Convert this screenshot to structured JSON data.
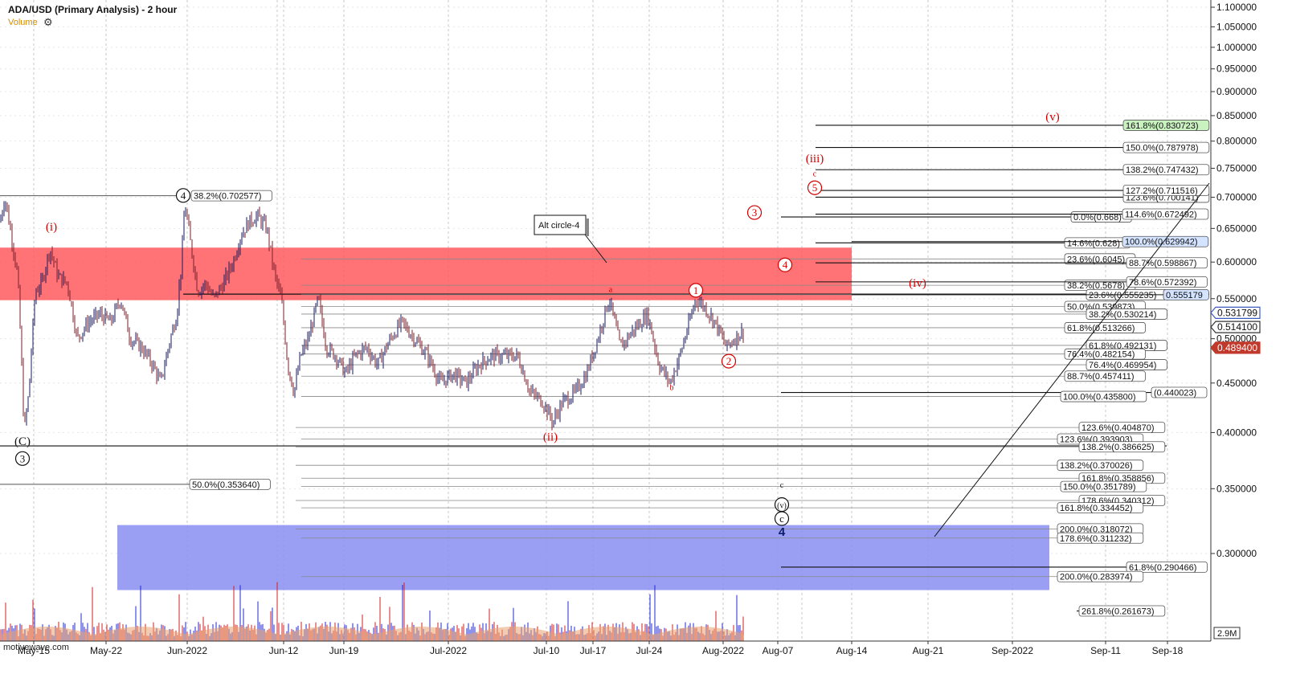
{
  "header": {
    "title": "ADA/USD (Primary Analysis) - 2 hour",
    "volume_label": "Volume",
    "gear_icon": "gear-icon",
    "watermark": "motivewave.com"
  },
  "colors": {
    "red_zone": "#ff5a5f",
    "blue_zone": "#8f95f2",
    "candle": "#1a1a5e",
    "wave_red": "#d40000",
    "fib_line": "#222222",
    "price_badge_blue": "#3b5bbf",
    "price_badge_red": "#c0392b",
    "highlight_green": "#c9f2c0",
    "highlight_blue": "#d4e3ff"
  },
  "chart_data": {
    "type": "candlestick",
    "title": "ADA/USD (Primary Analysis) - 2 hour",
    "ylim": [
      0.26,
      1.1
    ],
    "y_scale": "log",
    "y_ticks": [
      "1.100000",
      "1.050000",
      "1.000000",
      "0.950000",
      "0.900000",
      "0.850000",
      "0.800000",
      "0.750000",
      "0.700000",
      "0.650000",
      "0.600000",
      "0.550000",
      "0.500000",
      "0.450000",
      "0.400000",
      "0.350000",
      "0.300000"
    ],
    "x_ticks": [
      "May-15",
      "May-22",
      "Jun-2022",
      "Jun-12",
      "Jun-19",
      "Jul-2022",
      "Jul-10",
      "Jul-17",
      "Jul-24",
      "Aug-2022",
      "Aug-07",
      "Aug-14",
      "Aug-21",
      "Sep-2022",
      "Sep-11",
      "Sep-18"
    ],
    "current_prices": [
      {
        "value": "0.531799",
        "style": "blue-outline"
      },
      {
        "value": "0.514100",
        "style": "plain"
      },
      {
        "value": "0.489400",
        "style": "red"
      }
    ],
    "volume_scale_label": "2.9M",
    "price_path": [
      [
        0,
        0.66
      ],
      [
        6,
        0.7
      ],
      [
        14,
        0.64
      ],
      [
        22,
        0.58
      ],
      [
        30,
        0.4
      ],
      [
        36,
        0.44
      ],
      [
        44,
        0.56
      ],
      [
        52,
        0.57
      ],
      [
        62,
        0.62
      ],
      [
        72,
        0.58
      ],
      [
        84,
        0.57
      ],
      [
        96,
        0.5
      ],
      [
        110,
        0.52
      ],
      [
        124,
        0.53
      ],
      [
        138,
        0.52
      ],
      [
        150,
        0.55
      ],
      [
        162,
        0.5
      ],
      [
        176,
        0.49
      ],
      [
        190,
        0.47
      ],
      [
        200,
        0.45
      ],
      [
        212,
        0.5
      ],
      [
        220,
        0.53
      ],
      [
        226,
        0.6
      ],
      [
        230,
        0.69
      ],
      [
        238,
        0.62
      ],
      [
        246,
        0.56
      ],
      [
        256,
        0.57
      ],
      [
        266,
        0.55
      ],
      [
        278,
        0.57
      ],
      [
        290,
        0.6
      ],
      [
        300,
        0.64
      ],
      [
        310,
        0.66
      ],
      [
        320,
        0.67
      ],
      [
        332,
        0.65
      ],
      [
        342,
        0.58
      ],
      [
        350,
        0.55
      ],
      [
        358,
        0.47
      ],
      [
        366,
        0.44
      ],
      [
        374,
        0.48
      ],
      [
        384,
        0.5
      ],
      [
        396,
        0.55
      ],
      [
        406,
        0.49
      ],
      [
        418,
        0.48
      ],
      [
        430,
        0.46
      ],
      [
        442,
        0.48
      ],
      [
        456,
        0.49
      ],
      [
        470,
        0.47
      ],
      [
        486,
        0.5
      ],
      [
        500,
        0.52
      ],
      [
        516,
        0.5
      ],
      [
        532,
        0.48
      ],
      [
        548,
        0.45
      ],
      [
        564,
        0.46
      ],
      [
        580,
        0.45
      ],
      [
        596,
        0.47
      ],
      [
        612,
        0.48
      ],
      [
        628,
        0.48
      ],
      [
        644,
        0.48
      ],
      [
        660,
        0.44
      ],
      [
        676,
        0.43
      ],
      [
        688,
        0.41
      ],
      [
        700,
        0.43
      ],
      [
        716,
        0.44
      ],
      [
        730,
        0.46
      ],
      [
        744,
        0.5
      ],
      [
        758,
        0.55
      ],
      [
        772,
        0.49
      ],
      [
        788,
        0.51
      ],
      [
        806,
        0.53
      ],
      [
        820,
        0.47
      ],
      [
        834,
        0.45
      ],
      [
        846,
        0.48
      ],
      [
        858,
        0.52
      ],
      [
        866,
        0.55
      ],
      [
        876,
        0.54
      ],
      [
        890,
        0.52
      ],
      [
        904,
        0.49
      ],
      [
        914,
        0.5
      ],
      [
        926,
        0.51
      ]
    ],
    "zones": [
      {
        "name": "red-resistance-zone",
        "y_top": 0.621,
        "y_bottom": 0.548,
        "x_end_label": "Aug-14"
      },
      {
        "name": "blue-support-zone",
        "y_top": 0.321,
        "y_bottom": 0.275
      }
    ],
    "fib_levels_right": [
      {
        "label": "161.8%(0.830723)",
        "y": 0.830723,
        "highlight": "green"
      },
      {
        "label": "150.0%(0.787978)",
        "y": 0.787978
      },
      {
        "label": "138.2%(0.747432)",
        "y": 0.747432
      },
      {
        "label": "123.6%(0.700141)",
        "y": 0.700141
      },
      {
        "label": "127.2%(0.711516)",
        "y": 0.711516
      },
      {
        "label": "0.0%(0.668)",
        "y": 0.668
      },
      {
        "label": "114.6%(0.672492)",
        "y": 0.672492
      },
      {
        "label": "14.6%(0.628)",
        "y": 0.628
      },
      {
        "label": "100.0%(0.629942)",
        "y": 0.629942,
        "highlight": "blue"
      },
      {
        "label": "23.6%(0.6045)",
        "y": 0.6045
      },
      {
        "label": "88.7%(0.598867)",
        "y": 0.598867
      },
      {
        "label": "38.2%(0.5678)",
        "y": 0.5678
      },
      {
        "label": "78.6%(0.572392)",
        "y": 0.572392
      },
      {
        "label": "23.6%(0.555235)",
        "y": 0.555235
      },
      {
        "label": "0.555179",
        "y": 0.555179,
        "highlight": "blue"
      },
      {
        "label": "50.0%(0.539873)",
        "y": 0.539873
      },
      {
        "label": "38.2%(0.530214)",
        "y": 0.530214
      },
      {
        "label": "61.8%(0.513266)",
        "y": 0.513266
      },
      {
        "label": "61.8%(0.492131)",
        "y": 0.492131
      },
      {
        "label": "76.4%(0.482154)",
        "y": 0.482154
      },
      {
        "label": "76.4%(0.469954)",
        "y": 0.469954
      },
      {
        "label": "88.7%(0.457411)",
        "y": 0.457411
      },
      {
        "label": "(0.440023)",
        "y": 0.440023
      },
      {
        "label": "100.0%(0.435800)",
        "y": 0.4358
      },
      {
        "label": "123.6%(0.404870)",
        "y": 0.40487
      },
      {
        "label": "123.6%(0.393903)",
        "y": 0.393903
      },
      {
        "label": "138.2%(0.386625)",
        "y": 0.386625
      },
      {
        "label": "138.2%(0.370026)",
        "y": 0.370026
      },
      {
        "label": "161.8%(0.358856)",
        "y": 0.358856
      },
      {
        "label": "150.0%(0.351789)",
        "y": 0.351789
      },
      {
        "label": "178.6%(0.340312)",
        "y": 0.340312
      },
      {
        "label": "161.8%(0.334452)",
        "y": 0.334452
      },
      {
        "label": "200.0%(0.318072)",
        "y": 0.318072
      },
      {
        "label": "178.6%(0.311232)",
        "y": 0.311232
      },
      {
        "label": "61.8%(0.290466)",
        "y": 0.290466
      },
      {
        "label": "200.0%(0.283974)",
        "y": 0.283974
      },
      {
        "label": "261.8%(0.261673)",
        "y": 0.261673
      }
    ],
    "fib_levels_left": [
      {
        "label": "38.2%(0.702577)",
        "y": 0.702577
      },
      {
        "label": "50.0%(0.353640)",
        "y": 0.35364
      }
    ],
    "wave_labels": [
      {
        "text": "(i)",
        "color": "red",
        "style": "plain",
        "at": [
          64,
          0.653
        ]
      },
      {
        "text": "4",
        "color": "black",
        "style": "circle",
        "at": [
          228,
          0.703
        ]
      },
      {
        "text": "(C)",
        "color": "black",
        "style": "plain",
        "at": [
          28,
          0.392
        ]
      },
      {
        "text": "3",
        "color": "black",
        "style": "circle",
        "at": [
          28,
          0.376
        ]
      },
      {
        "text": "a",
        "color": "red",
        "style": "small",
        "at": [
          760,
          0.562
        ]
      },
      {
        "text": "1",
        "color": "red",
        "style": "circle",
        "at": [
          866,
          0.561
        ]
      },
      {
        "text": "2",
        "color": "red",
        "style": "circle",
        "at": [
          907,
          0.474
        ]
      },
      {
        "text": "b",
        "color": "red",
        "style": "small",
        "at": [
          836,
          0.445
        ]
      },
      {
        "text": "(ii)",
        "color": "red",
        "style": "plain",
        "at": [
          685,
          0.396
        ]
      },
      {
        "text": "(v)",
        "color": "red",
        "style": "plain",
        "at": [
          1310,
          0.848
        ]
      },
      {
        "text": "(iii)",
        "color": "red",
        "style": "plain",
        "at": [
          1014,
          0.768
        ]
      },
      {
        "text": "c",
        "color": "red",
        "style": "small",
        "at": [
          1014,
          0.74
        ]
      },
      {
        "text": "5",
        "color": "red",
        "style": "circle",
        "at": [
          1014,
          0.716
        ]
      },
      {
        "text": "3",
        "color": "red",
        "style": "circle",
        "at": [
          939,
          0.675
        ]
      },
      {
        "text": "4",
        "color": "red",
        "style": "circle",
        "at": [
          977,
          0.596
        ]
      },
      {
        "text": "(iv)",
        "color": "red",
        "style": "plain",
        "at": [
          1142,
          0.571
        ]
      },
      {
        "text": "c",
        "color": "black",
        "style": "small",
        "at": [
          973,
          0.353
        ]
      },
      {
        "text": "(v)",
        "color": "black",
        "style": "circle",
        "at": [
          973,
          0.337
        ]
      },
      {
        "text": "c",
        "color": "black",
        "style": "circle",
        "at": [
          973,
          0.326
        ]
      },
      {
        "text": "4",
        "color": "navy",
        "style": "bold",
        "at": [
          973,
          0.316
        ]
      }
    ],
    "callout": {
      "text": "Alt circle-4"
    }
  }
}
